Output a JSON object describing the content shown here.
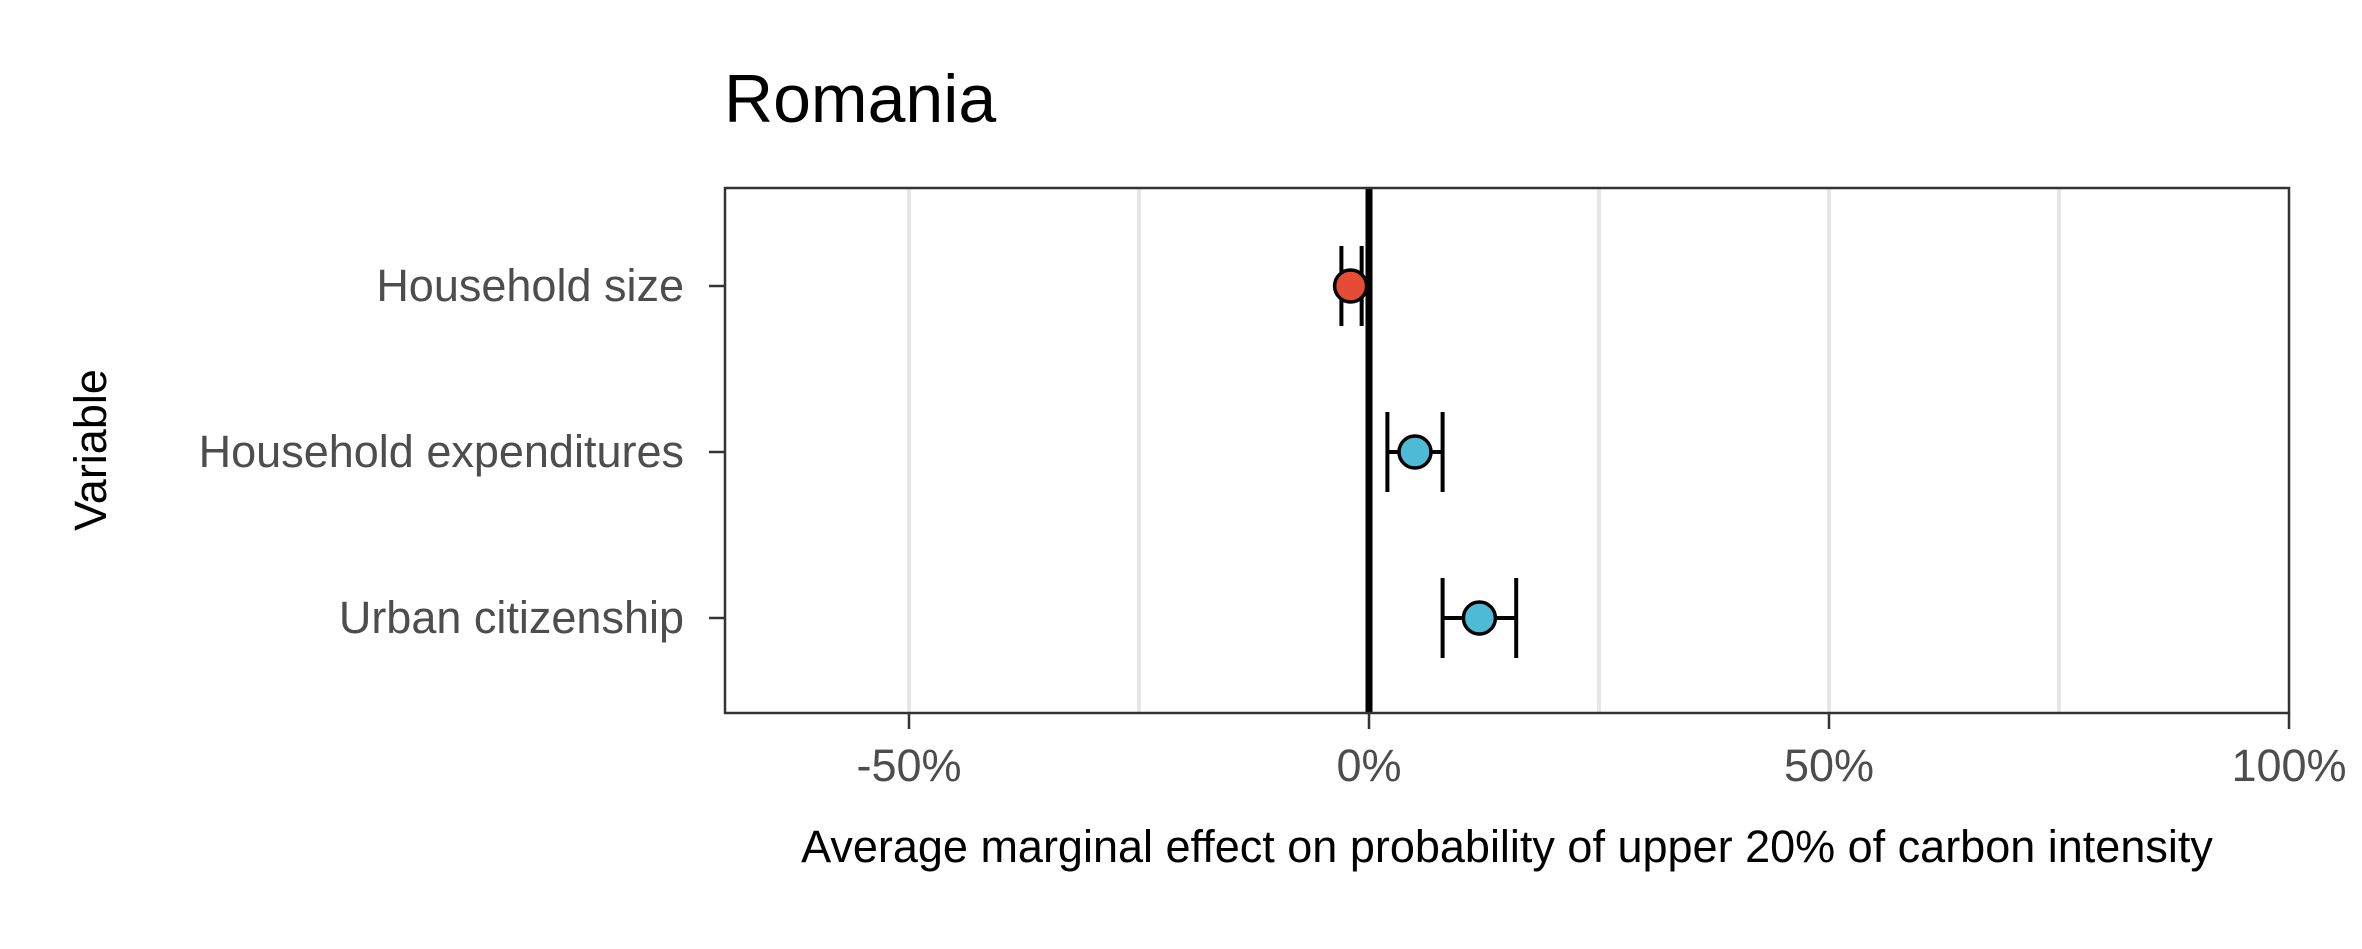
{
  "chart_data": {
    "type": "scatter",
    "title": "Romania",
    "xlabel": "Average marginal effect on probability of upper 20% of carbon intensity",
    "ylabel": "Variable",
    "xlim": [
      -0.7,
      1.0
    ],
    "x_ticks": [
      {
        "value": -0.5,
        "label": "-50%"
      },
      {
        "value": 0.0,
        "label": "0%"
      },
      {
        "value": 0.5,
        "label": "50%"
      },
      {
        "value": 1.0,
        "label": "100%"
      }
    ],
    "minor_gridlines": [
      -0.25,
      0.25,
      0.75
    ],
    "reference_line": 0.0,
    "grid": true,
    "categories": [
      "Household size",
      "Household expenditures",
      "Urban citizenship"
    ],
    "points": [
      {
        "label": "Household size",
        "estimate": -0.02,
        "ci_low": -0.03,
        "ci_high": -0.008,
        "color": "#E64B35"
      },
      {
        "label": "Household expenditures",
        "estimate": 0.05,
        "ci_low": 0.02,
        "ci_high": 0.08,
        "color": "#4DBBD5"
      },
      {
        "label": "Urban citizenship",
        "estimate": 0.12,
        "ci_low": 0.08,
        "ci_high": 0.16,
        "color": "#4DBBD5"
      }
    ]
  }
}
